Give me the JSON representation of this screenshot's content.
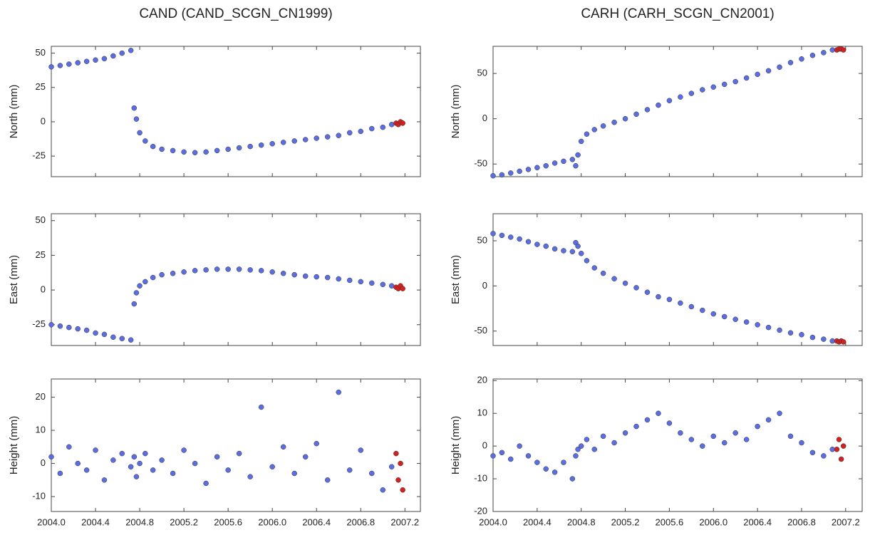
{
  "chart_data": [
    {
      "type": "scatter",
      "title": "CAND (CAND_SCGN_CN1999)",
      "ylabel": "North (mm)",
      "xlim": [
        2004.0,
        2007.34
      ],
      "ylim": [
        -40,
        55
      ],
      "yticks": [
        -25,
        0,
        25,
        50
      ],
      "series": [
        {
          "color": "#5b6ee1",
          "x": [
            2004.0,
            2004.08,
            2004.16,
            2004.24,
            2004.32,
            2004.4,
            2004.48,
            2004.56,
            2004.64,
            2004.72,
            2004.75,
            2004.77,
            2004.8,
            2004.85,
            2004.92,
            2005.0,
            2005.1,
            2005.2,
            2005.3,
            2005.4,
            2005.5,
            2005.6,
            2005.7,
            2005.8,
            2005.9,
            2006.0,
            2006.1,
            2006.2,
            2006.3,
            2006.4,
            2006.5,
            2006.6,
            2006.7,
            2006.8,
            2006.9,
            2007.0,
            2007.08
          ],
          "values": [
            40,
            41,
            42,
            43,
            44,
            45,
            46,
            48,
            50,
            52,
            10,
            2,
            -8,
            -14,
            -18,
            -20,
            -21,
            -22,
            -22.5,
            -22,
            -21,
            -20,
            -19,
            -18,
            -17,
            -16,
            -15,
            -14,
            -13,
            -12,
            -11,
            -10,
            -8,
            -7,
            -5,
            -4,
            -2
          ]
        },
        {
          "color": "#d42020",
          "x": [
            2007.12,
            2007.14,
            2007.16,
            2007.18
          ],
          "values": [
            -1,
            -2,
            0,
            -1
          ]
        }
      ]
    },
    {
      "type": "scatter",
      "ylabel": "East (mm)",
      "xlim": [
        2004.0,
        2007.34
      ],
      "ylim": [
        -40,
        55
      ],
      "yticks": [
        -25,
        0,
        25,
        50
      ],
      "series": [
        {
          "color": "#5b6ee1",
          "x": [
            2004.0,
            2004.08,
            2004.16,
            2004.24,
            2004.32,
            2004.4,
            2004.48,
            2004.56,
            2004.64,
            2004.72,
            2004.75,
            2004.77,
            2004.8,
            2004.85,
            2004.92,
            2005.0,
            2005.1,
            2005.2,
            2005.3,
            2005.4,
            2005.5,
            2005.6,
            2005.7,
            2005.8,
            2005.9,
            2006.0,
            2006.1,
            2006.2,
            2006.3,
            2006.4,
            2006.5,
            2006.6,
            2006.7,
            2006.8,
            2006.9,
            2007.0,
            2007.08
          ],
          "values": [
            -25,
            -26,
            -27,
            -28,
            -29,
            -31,
            -32,
            -34,
            -35,
            -36,
            -10,
            -2,
            3,
            6,
            9,
            11,
            12,
            13,
            14,
            14.5,
            15,
            15,
            15,
            14.5,
            14,
            13,
            12,
            11,
            10,
            9.5,
            9,
            8,
            7,
            6,
            5,
            4,
            3
          ]
        },
        {
          "color": "#d42020",
          "x": [
            2007.12,
            2007.14,
            2007.16,
            2007.18
          ],
          "values": [
            2,
            1,
            3,
            1
          ]
        }
      ]
    },
    {
      "type": "scatter",
      "ylabel": "Height (mm)",
      "xlim": [
        2004.0,
        2007.34
      ],
      "ylim": [
        -14.5,
        25.5
      ],
      "yticks": [
        -10,
        0,
        10,
        20
      ],
      "xticks": [
        {
          "value": 2004,
          "label": "2004.0"
        },
        2004.4,
        2004.8,
        2005.2,
        2005.6,
        {
          "value": 2006,
          "label": "2006.0"
        },
        2006.4,
        2006.8,
        2007.2
      ],
      "series": [
        {
          "color": "#5b6ee1",
          "x": [
            2004.0,
            2004.08,
            2004.16,
            2004.24,
            2004.32,
            2004.4,
            2004.48,
            2004.56,
            2004.64,
            2004.72,
            2004.75,
            2004.77,
            2004.8,
            2004.85,
            2004.92,
            2005.0,
            2005.1,
            2005.2,
            2005.3,
            2005.4,
            2005.5,
            2005.6,
            2005.7,
            2005.8,
            2005.9,
            2006.0,
            2006.1,
            2006.2,
            2006.3,
            2006.4,
            2006.5,
            2006.6,
            2006.7,
            2006.8,
            2006.9,
            2007.0,
            2007.08
          ],
          "values": [
            2,
            -3,
            5,
            0,
            -2,
            4,
            -5,
            1,
            3,
            -1,
            2,
            -4,
            0,
            3,
            -2,
            1,
            -3,
            4,
            0,
            -6,
            2,
            -2,
            3,
            -4,
            17,
            -1,
            5,
            -3,
            2,
            6,
            -5,
            21.5,
            -2,
            4,
            -3,
            -8,
            -1
          ]
        },
        {
          "color": "#d42020",
          "x": [
            2007.12,
            2007.14,
            2007.16,
            2007.18
          ],
          "values": [
            3,
            -5,
            0,
            -8
          ]
        }
      ]
    },
    {
      "type": "scatter",
      "title": "CARH (CARH_SCGN_CN2001)",
      "ylabel": "North (mm)",
      "xlim": [
        2004.0,
        2007.35
      ],
      "ylim": [
        -64,
        80
      ],
      "yticks": [
        -50,
        0,
        50
      ],
      "series": [
        {
          "color": "#5b6ee1",
          "x": [
            2004.0,
            2004.08,
            2004.16,
            2004.24,
            2004.32,
            2004.4,
            2004.48,
            2004.56,
            2004.64,
            2004.72,
            2004.75,
            2004.77,
            2004.8,
            2004.85,
            2004.92,
            2005.0,
            2005.1,
            2005.2,
            2005.3,
            2005.4,
            2005.5,
            2005.6,
            2005.7,
            2005.8,
            2005.9,
            2006.0,
            2006.1,
            2006.2,
            2006.3,
            2006.4,
            2006.5,
            2006.6,
            2006.7,
            2006.8,
            2006.9,
            2007.0,
            2007.08
          ],
          "values": [
            -63,
            -62,
            -60,
            -58,
            -56,
            -54,
            -52,
            -49,
            -47,
            -45,
            -52,
            -40,
            -25,
            -17,
            -12,
            -8,
            -4,
            0,
            5,
            10,
            15,
            20,
            24,
            28,
            32,
            35,
            38,
            41,
            45,
            49,
            53,
            57,
            62,
            66,
            70,
            73,
            76
          ]
        },
        {
          "color": "#d42020",
          "x": [
            2007.12,
            2007.14,
            2007.16,
            2007.18
          ],
          "values": [
            76,
            77,
            77,
            76
          ]
        }
      ]
    },
    {
      "type": "scatter",
      "ylabel": "East (mm)",
      "xlim": [
        2004.0,
        2007.35
      ],
      "ylim": [
        -66,
        80
      ],
      "yticks": [
        -50,
        0,
        50
      ],
      "series": [
        {
          "color": "#5b6ee1",
          "x": [
            2004.0,
            2004.08,
            2004.16,
            2004.24,
            2004.32,
            2004.4,
            2004.48,
            2004.56,
            2004.64,
            2004.72,
            2004.75,
            2004.77,
            2004.8,
            2004.85,
            2004.92,
            2005.0,
            2005.1,
            2005.2,
            2005.3,
            2005.4,
            2005.5,
            2005.6,
            2005.7,
            2005.8,
            2005.9,
            2006.0,
            2006.1,
            2006.2,
            2006.3,
            2006.4,
            2006.5,
            2006.6,
            2006.7,
            2006.8,
            2006.9,
            2007.0,
            2007.08
          ],
          "values": [
            58,
            56,
            54,
            52,
            49,
            46,
            44,
            41,
            39,
            38,
            48,
            44,
            36,
            28,
            20,
            14,
            8,
            3,
            -2,
            -7,
            -12,
            -15,
            -19,
            -23,
            -27,
            -31,
            -34,
            -37,
            -40,
            -43,
            -46,
            -49,
            -52,
            -54,
            -57,
            -59,
            -61
          ]
        },
        {
          "color": "#d42020",
          "x": [
            2007.12,
            2007.14,
            2007.16,
            2007.18
          ],
          "values": [
            -61,
            -62,
            -61,
            -62
          ]
        }
      ]
    },
    {
      "type": "scatter",
      "ylabel": "Height (mm)",
      "xlim": [
        2004.0,
        2007.35
      ],
      "ylim": [
        -20,
        20.5
      ],
      "yticks": [
        -20,
        -10,
        0,
        10,
        20
      ],
      "xticks": [
        {
          "value": 2004,
          "label": "2004.0"
        },
        2004.4,
        2004.8,
        2005.2,
        2005.6,
        {
          "value": 2006,
          "label": "2006.0"
        },
        2006.4,
        2006.8,
        2007.2
      ],
      "series": [
        {
          "color": "#5b6ee1",
          "x": [
            2004.0,
            2004.08,
            2004.16,
            2004.24,
            2004.32,
            2004.4,
            2004.48,
            2004.56,
            2004.64,
            2004.72,
            2004.75,
            2004.77,
            2004.8,
            2004.85,
            2004.92,
            2005.0,
            2005.1,
            2005.2,
            2005.3,
            2005.4,
            2005.5,
            2005.6,
            2005.7,
            2005.8,
            2005.9,
            2006.0,
            2006.1,
            2006.2,
            2006.3,
            2006.4,
            2006.5,
            2006.6,
            2006.7,
            2006.8,
            2006.9,
            2007.0,
            2007.08
          ],
          "values": [
            -3,
            -2,
            -4,
            0,
            -3,
            -5,
            -7,
            -8,
            -5,
            -10,
            -3,
            -1,
            0,
            2,
            -1,
            3,
            1,
            4,
            6,
            8,
            10,
            7,
            4,
            2,
            0,
            3,
            1,
            4,
            2,
            6,
            8,
            10,
            3,
            1,
            -2,
            -3,
            -1
          ]
        },
        {
          "color": "#d42020",
          "x": [
            2007.12,
            2007.14,
            2007.16,
            2007.18
          ],
          "values": [
            -1,
            2,
            -4,
            0
          ]
        }
      ]
    }
  ]
}
